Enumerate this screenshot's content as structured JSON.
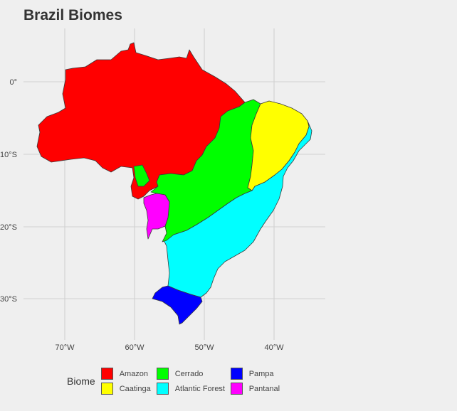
{
  "title": "Brazil Biomes",
  "axes": {
    "x_ticks": [
      "70°W",
      "60°W",
      "50°W",
      "40°W"
    ],
    "y_ticks": [
      "0°",
      "10°S",
      "20°S",
      "30°S"
    ]
  },
  "biomes": [
    {
      "name": "Amazon",
      "color": "#ff0000"
    },
    {
      "name": "Caatinga",
      "color": "#ffff00"
    },
    {
      "name": "Cerrado",
      "color": "#00ff00"
    },
    {
      "name": "Atlantic Forest",
      "color": "#00ffff"
    },
    {
      "name": "Pampa",
      "color": "#0000ff"
    },
    {
      "name": "Pantanal",
      "color": "#ff00ff"
    }
  ],
  "legend": {
    "title": "Biome",
    "items": [
      {
        "label": "Amazon",
        "color": "#ff0000"
      },
      {
        "label": "Caatinga",
        "color": "#ffff00"
      },
      {
        "label": "Cerrado",
        "color": "#00ff00"
      },
      {
        "label": "Atlantic Forest",
        "color": "#00ffff"
      },
      {
        "label": "Pampa",
        "color": "#0000ff"
      },
      {
        "label": "Pantanal",
        "color": "#ff00ff"
      }
    ]
  }
}
